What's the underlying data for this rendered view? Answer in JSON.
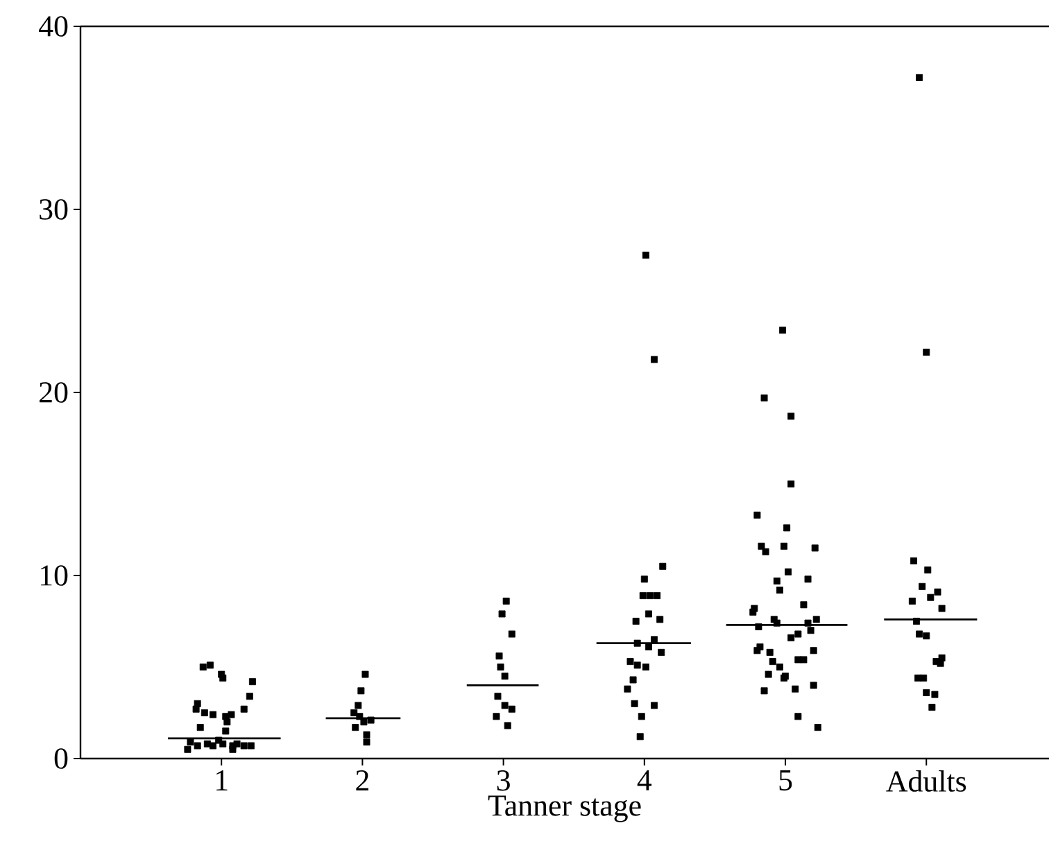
{
  "chart_data": {
    "type": "scatter",
    "xlabel": "Tanner stage",
    "xlim": [
      0,
      6.87
    ],
    "ylim": [
      0,
      40
    ],
    "xticks": [
      1,
      2,
      3,
      4,
      5,
      {
        "value": 6,
        "label": "Adults"
      }
    ],
    "yticks": [
      0,
      10,
      20,
      30,
      40
    ],
    "marker": "square",
    "grid": false,
    "legend": false,
    "series": [
      {
        "color": "#000000",
        "x": [
          0.87,
          0.92,
          1.0,
          1.01,
          1.22,
          1.2,
          1.16,
          0.83,
          0.82,
          0.88,
          0.94,
          1.03,
          1.07,
          1.04,
          0.85,
          1.03,
          0.78,
          0.76,
          0.83,
          0.9,
          0.94,
          0.98,
          1.01,
          1.08,
          1.11,
          1.16,
          1.21,
          1.08,
          2.02,
          1.99,
          1.97,
          1.94,
          1.98,
          2.01,
          2.06,
          1.95,
          2.03,
          2.03,
          3.02,
          2.99,
          3.06,
          2.97,
          2.98,
          3.01,
          2.96,
          3.01,
          3.06,
          2.95,
          3.03,
          4.0,
          4.13,
          3.99,
          4.04,
          4.09,
          4.03,
          3.94,
          4.11,
          3.95,
          4.03,
          4.07,
          3.9,
          3.95,
          4.01,
          3.92,
          3.88,
          3.93,
          4.07,
          3.98,
          3.97,
          4.01,
          4.07,
          4.12,
          4.98,
          4.85,
          5.04,
          5.04,
          4.8,
          5.01,
          4.83,
          4.86,
          4.99,
          5.02,
          4.94,
          4.96,
          4.78,
          4.77,
          4.92,
          4.81,
          4.94,
          5.04,
          5.09,
          4.82,
          4.8,
          4.89,
          4.91,
          5.09,
          4.88,
          4.99,
          4.85,
          5.07,
          5.09,
          5.21,
          5.16,
          5.13,
          5.22,
          5.16,
          5.18,
          5.13,
          5.2,
          4.96,
          5.0,
          5.2,
          5.23,
          5.95,
          6.0,
          5.91,
          6.01,
          5.97,
          5.9,
          6.03,
          6.08,
          6.11,
          5.93,
          5.95,
          6.0,
          6.1,
          6.07,
          6.11,
          5.94,
          5.98,
          6.0,
          6.06,
          6.04
        ],
        "values": [
          5.0,
          5.1,
          4.6,
          4.4,
          4.2,
          3.4,
          2.7,
          3.0,
          2.7,
          2.5,
          2.4,
          2.3,
          2.4,
          2.0,
          1.7,
          1.5,
          0.9,
          0.5,
          0.7,
          0.8,
          0.7,
          1.0,
          0.8,
          0.7,
          0.8,
          0.7,
          0.7,
          0.5,
          4.6,
          3.7,
          2.9,
          2.5,
          2.3,
          2.0,
          2.1,
          1.7,
          1.3,
          0.9,
          8.6,
          7.9,
          6.8,
          5.6,
          5.0,
          4.5,
          3.4,
          2.9,
          2.7,
          2.3,
          1.8,
          9.8,
          10.5,
          8.9,
          8.9,
          8.9,
          7.9,
          7.5,
          7.6,
          6.3,
          6.1,
          6.5,
          5.3,
          5.1,
          5.0,
          4.3,
          3.8,
          3.0,
          2.9,
          2.3,
          1.2,
          27.5,
          21.8,
          5.8,
          23.4,
          19.7,
          18.7,
          15.0,
          13.3,
          12.6,
          11.6,
          11.3,
          11.6,
          10.2,
          9.7,
          9.2,
          8.2,
          8.0,
          7.6,
          7.2,
          7.4,
          6.6,
          6.8,
          6.1,
          5.9,
          5.8,
          5.3,
          5.4,
          4.6,
          4.4,
          3.7,
          3.8,
          2.3,
          11.5,
          9.8,
          8.4,
          7.6,
          7.4,
          7.0,
          5.4,
          5.9,
          5.0,
          4.5,
          4.0,
          1.7,
          37.2,
          22.2,
          10.8,
          10.3,
          9.4,
          8.6,
          8.8,
          9.1,
          8.2,
          7.5,
          6.8,
          6.7,
          5.2,
          5.3,
          5.5,
          4.4,
          4.4,
          3.6,
          3.5,
          2.8
        ]
      },
      {
        "type": "line",
        "color": "#000000",
        "marker": "none",
        "x": [
          0.62,
          1.42,
          1.6,
          1.74,
          2.27,
          2.5,
          2.74,
          3.25,
          3.45,
          3.66,
          4.33,
          4.45,
          4.58,
          5.44,
          5.57,
          5.7,
          6.36
        ],
        "values": [
          1.1,
          1.1,
          null,
          2.2,
          2.2,
          null,
          4.0,
          4.0,
          null,
          6.3,
          6.3,
          null,
          7.3,
          7.3,
          null,
          7.6,
          7.6
        ]
      }
    ]
  }
}
